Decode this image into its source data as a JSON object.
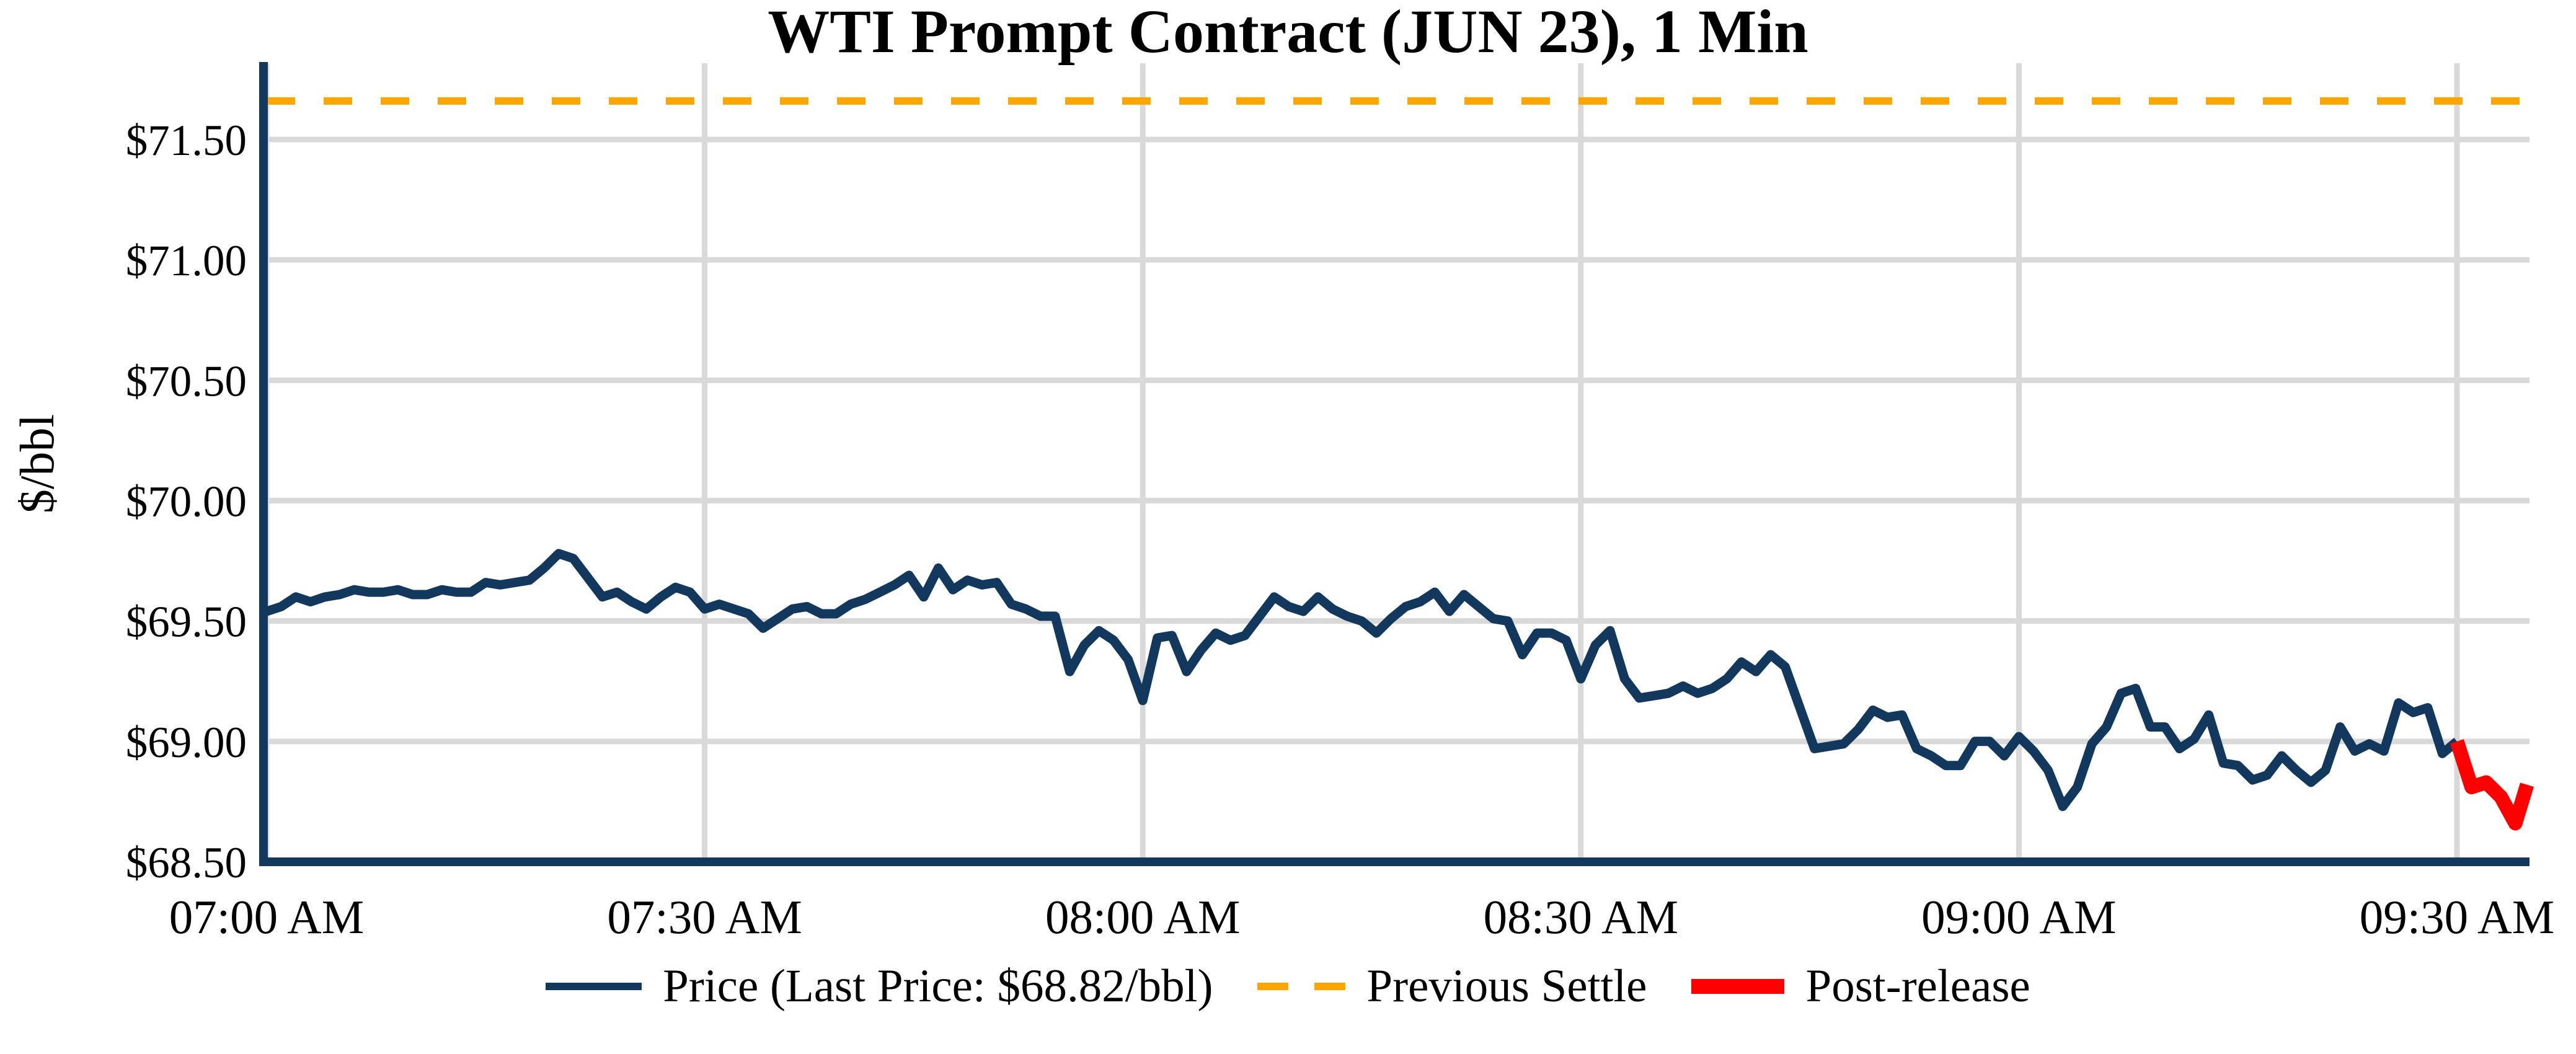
{
  "title": "WTI Prompt Contract (JUN 23), 1 Min",
  "y_axis_label": "$/bbl",
  "legend": {
    "price_label": "Price (Last Price: $68.82/bbl)",
    "previous_settle_label": "Previous Settle",
    "post_release_label": "Post-release"
  },
  "colors": {
    "price_line": "#12395d",
    "previous_settle": "#ffa500",
    "post_release": "#ff0000",
    "grid": "#d9d9d9",
    "axis": "#12395d",
    "text": "#000000",
    "background": "#ffffff"
  },
  "chart_data": {
    "type": "line",
    "title": "WTI Prompt Contract (JUN 23), 1 Min",
    "xlabel": "",
    "ylabel": "$/bbl",
    "x_unit": "minutes after 07:00 AM",
    "ylim": [
      68.5,
      71.81
    ],
    "x_range_minutes": [
      0,
      155
    ],
    "grid": true,
    "legend_position": "bottom",
    "last_price": 68.82,
    "previous_settle": 71.66,
    "y_ticks": [
      {
        "value": 68.5,
        "label": "$68.50"
      },
      {
        "value": 69.0,
        "label": "$69.00"
      },
      {
        "value": 69.5,
        "label": "$69.50"
      },
      {
        "value": 70.0,
        "label": "$70.00"
      },
      {
        "value": 70.5,
        "label": "$70.50"
      },
      {
        "value": 71.0,
        "label": "$71.00"
      },
      {
        "value": 71.5,
        "label": "$71.50"
      }
    ],
    "x_ticks": [
      {
        "minute": 0,
        "label": "07:00 AM"
      },
      {
        "minute": 30,
        "label": "07:30 AM"
      },
      {
        "minute": 60,
        "label": "08:00 AM"
      },
      {
        "minute": 90,
        "label": "08:30 AM"
      },
      {
        "minute": 120,
        "label": "09:00 AM"
      },
      {
        "minute": 150,
        "label": "09:30 AM"
      }
    ],
    "series": [
      {
        "name": "Price",
        "style": "solid",
        "points": [
          [
            0,
            69.54
          ],
          [
            1,
            69.56
          ],
          [
            2,
            69.6
          ],
          [
            3,
            69.58
          ],
          [
            4,
            69.6
          ],
          [
            5,
            69.61
          ],
          [
            6,
            69.63
          ],
          [
            7,
            69.62
          ],
          [
            8,
            69.62
          ],
          [
            9,
            69.63
          ],
          [
            10,
            69.61
          ],
          [
            11,
            69.61
          ],
          [
            12,
            69.63
          ],
          [
            13,
            69.62
          ],
          [
            14,
            69.62
          ],
          [
            15,
            69.66
          ],
          [
            16,
            69.65
          ],
          [
            17,
            69.66
          ],
          [
            18,
            69.67
          ],
          [
            19,
            69.72
          ],
          [
            20,
            69.78
          ],
          [
            21,
            69.76
          ],
          [
            22,
            69.68
          ],
          [
            23,
            69.6
          ],
          [
            24,
            69.62
          ],
          [
            25,
            69.58
          ],
          [
            26,
            69.55
          ],
          [
            27,
            69.6
          ],
          [
            28,
            69.64
          ],
          [
            29,
            69.62
          ],
          [
            30,
            69.55
          ],
          [
            31,
            69.57
          ],
          [
            32,
            69.55
          ],
          [
            33,
            69.53
          ],
          [
            34,
            69.47
          ],
          [
            35,
            69.51
          ],
          [
            36,
            69.55
          ],
          [
            37,
            69.56
          ],
          [
            38,
            69.53
          ],
          [
            39,
            69.53
          ],
          [
            40,
            69.57
          ],
          [
            41,
            69.59
          ],
          [
            42,
            69.62
          ],
          [
            43,
            69.65
          ],
          [
            44,
            69.69
          ],
          [
            45,
            69.6
          ],
          [
            46,
            69.72
          ],
          [
            47,
            69.63
          ],
          [
            48,
            69.67
          ],
          [
            49,
            69.65
          ],
          [
            50,
            69.66
          ],
          [
            51,
            69.57
          ],
          [
            52,
            69.55
          ],
          [
            53,
            69.52
          ],
          [
            54,
            69.52
          ],
          [
            55,
            69.29
          ],
          [
            56,
            69.4
          ],
          [
            57,
            69.46
          ],
          [
            58,
            69.42
          ],
          [
            59,
            69.34
          ],
          [
            60,
            69.17
          ],
          [
            61,
            69.43
          ],
          [
            62,
            69.44
          ],
          [
            63,
            69.29
          ],
          [
            64,
            69.38
          ],
          [
            65,
            69.45
          ],
          [
            66,
            69.42
          ],
          [
            67,
            69.44
          ],
          [
            68,
            69.52
          ],
          [
            69,
            69.6
          ],
          [
            70,
            69.56
          ],
          [
            71,
            69.54
          ],
          [
            72,
            69.6
          ],
          [
            73,
            69.55
          ],
          [
            74,
            69.52
          ],
          [
            75,
            69.5
          ],
          [
            76,
            69.45
          ],
          [
            77,
            69.51
          ],
          [
            78,
            69.56
          ],
          [
            79,
            69.58
          ],
          [
            80,
            69.62
          ],
          [
            81,
            69.54
          ],
          [
            82,
            69.61
          ],
          [
            83,
            69.56
          ],
          [
            84,
            69.51
          ],
          [
            85,
            69.5
          ],
          [
            86,
            69.36
          ],
          [
            87,
            69.45
          ],
          [
            88,
            69.45
          ],
          [
            89,
            69.42
          ],
          [
            90,
            69.26
          ],
          [
            91,
            69.4
          ],
          [
            92,
            69.46
          ],
          [
            93,
            69.26
          ],
          [
            94,
            69.18
          ],
          [
            95,
            69.19
          ],
          [
            96,
            69.2
          ],
          [
            97,
            69.23
          ],
          [
            98,
            69.2
          ],
          [
            99,
            69.22
          ],
          [
            100,
            69.26
          ],
          [
            101,
            69.33
          ],
          [
            102,
            69.29
          ],
          [
            103,
            69.36
          ],
          [
            104,
            69.31
          ],
          [
            105,
            69.14
          ],
          [
            106,
            68.97
          ],
          [
            107,
            68.98
          ],
          [
            108,
            68.99
          ],
          [
            109,
            69.05
          ],
          [
            110,
            69.13
          ],
          [
            111,
            69.1
          ],
          [
            112,
            69.11
          ],
          [
            113,
            68.97
          ],
          [
            114,
            68.94
          ],
          [
            115,
            68.9
          ],
          [
            116,
            68.9
          ],
          [
            117,
            69.0
          ],
          [
            118,
            69.0
          ],
          [
            119,
            68.94
          ],
          [
            120,
            69.02
          ],
          [
            121,
            68.96
          ],
          [
            122,
            68.88
          ],
          [
            123,
            68.73
          ],
          [
            124,
            68.81
          ],
          [
            125,
            68.99
          ],
          [
            126,
            69.06
          ],
          [
            127,
            69.2
          ],
          [
            128,
            69.22
          ],
          [
            129,
            69.06
          ],
          [
            130,
            69.06
          ],
          [
            131,
            68.97
          ],
          [
            132,
            69.01
          ],
          [
            133,
            69.11
          ],
          [
            134,
            68.91
          ],
          [
            135,
            68.9
          ],
          [
            136,
            68.84
          ],
          [
            137,
            68.86
          ],
          [
            138,
            68.94
          ],
          [
            139,
            68.88
          ],
          [
            140,
            68.83
          ],
          [
            141,
            68.88
          ],
          [
            142,
            69.06
          ],
          [
            143,
            68.96
          ],
          [
            144,
            68.99
          ],
          [
            145,
            68.96
          ],
          [
            146,
            69.16
          ],
          [
            147,
            69.12
          ],
          [
            148,
            69.14
          ],
          [
            149,
            68.95
          ],
          [
            150,
            69.0
          ]
        ]
      },
      {
        "name": "Post-release",
        "style": "solid-thick",
        "points": [
          [
            150,
            69.0
          ],
          [
            151,
            68.81
          ],
          [
            152,
            68.83
          ],
          [
            153,
            68.77
          ],
          [
            154,
            68.66
          ],
          [
            155,
            68.82
          ]
        ]
      }
    ]
  }
}
